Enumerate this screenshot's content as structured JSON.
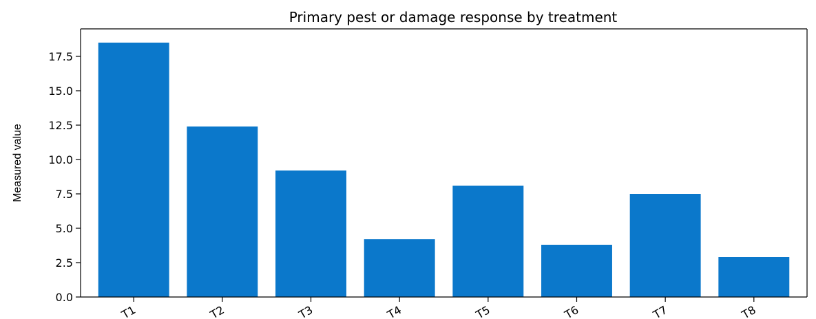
{
  "chart_data": {
    "type": "bar",
    "title": "Primary pest or damage response by treatment",
    "xlabel": "",
    "ylabel": "Measured value",
    "categories": [
      "T1",
      "T2",
      "T3",
      "T4",
      "T5",
      "T6",
      "T7",
      "T8"
    ],
    "values": [
      18.5,
      12.4,
      9.2,
      4.2,
      8.1,
      3.8,
      7.5,
      2.9
    ],
    "ylim": [
      0,
      19.5
    ],
    "yticks": [
      0.0,
      2.5,
      5.0,
      7.5,
      10.0,
      12.5,
      15.0,
      17.5
    ],
    "ytick_labels": [
      "0.0",
      "2.5",
      "5.0",
      "7.5",
      "10.0",
      "12.5",
      "15.0",
      "17.5"
    ],
    "bar_color": "#0b78cb",
    "grid": false,
    "legend": "none",
    "xtick_rotation_deg": -30
  }
}
